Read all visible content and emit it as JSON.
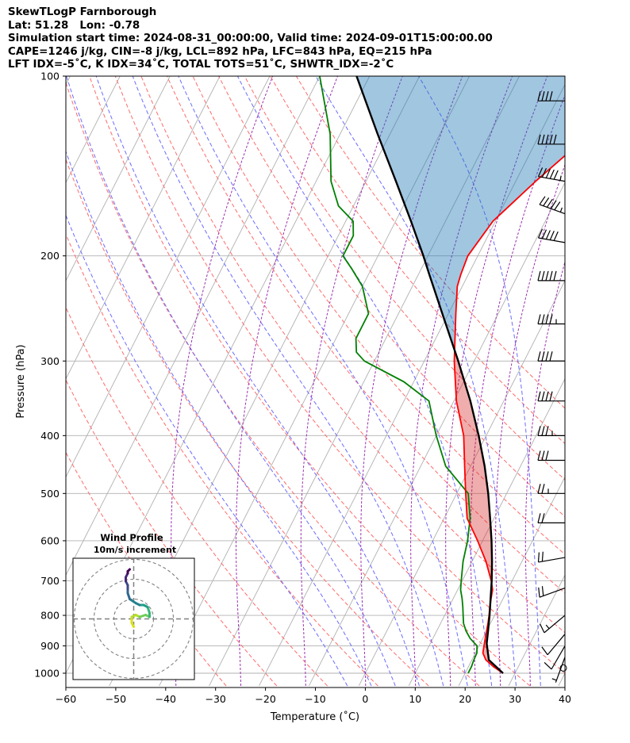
{
  "header": {
    "lines": [
      "SkewTLogP Farnborough",
      "Lat: 51.28   Lon: -0.78",
      "Simulation start time: 2024-08-31_00:00:00, Valid time: 2024-09-01T15:00:00.00",
      "CAPE=1246 j/kg, CIN=-8 j/kg, LCL=892 hPa, LFC=843 hPa, EQ=215 hPa",
      "LFT IDX=-5˚C, K IDX=34˚C, TOTAL TOTS=51˚C, SHWTR_IDX=-2˚C"
    ]
  },
  "chart_data": {
    "type": "skewt-logp",
    "xlabel": "Temperature (˚C)",
    "ylabel": "Pressure (hPa)",
    "xlim": [
      -60,
      40
    ],
    "ylim_hpa": [
      1050,
      100
    ],
    "x_ticks": [
      "−60",
      "−50",
      "−40",
      "−30",
      "−20",
      "−10",
      "0",
      "10",
      "20",
      "30",
      "40"
    ],
    "y_ticks": [
      "100",
      "200",
      "300",
      "400",
      "500",
      "600",
      "700",
      "800",
      "900",
      "1000"
    ],
    "pressure_levels": [
      100,
      200,
      300,
      400,
      500,
      600,
      700,
      800,
      900,
      1000
    ],
    "isotherms_c": [
      -160,
      -150,
      -140,
      -130,
      -120,
      -110,
      -100,
      -90,
      -80,
      -70,
      -60,
      -50,
      -40,
      -30,
      -20,
      -10,
      0,
      10,
      20,
      30,
      40
    ],
    "dry_adiabats_c": [
      -30,
      -20,
      -10,
      0,
      10,
      20,
      30,
      40,
      50,
      60,
      70,
      80,
      90,
      100,
      110
    ],
    "moist_adiabats_c": [
      -5,
      0,
      5,
      10,
      15,
      20,
      25,
      30,
      35
    ],
    "mixing_ratio_c_at_1000": [
      -38,
      -25,
      -12,
      0,
      10,
      17,
      22,
      27,
      33
    ],
    "colors": {
      "temperature": "#ff0000",
      "dewpoint": "#008000",
      "parcel": "#000000",
      "cape_fill": "#1f77b4",
      "cin_fill": "#d62728",
      "isotherm": "#b0b0b0",
      "dry_adiabat": "#ff6b6b",
      "moist_adiabat": "#6b6bff",
      "mixing_ratio": "#9b30b0"
    },
    "temperature": {
      "pressure": [
        1000,
        975,
        950,
        925,
        900,
        875,
        850,
        825,
        800,
        775,
        750,
        725,
        700,
        650,
        600,
        550,
        500,
        450,
        400,
        350,
        300,
        250,
        225,
        215,
        200,
        175,
        150,
        125,
        100
      ],
      "temp_c": [
        27.6,
        25.0,
        22.8,
        21.5,
        21.0,
        20.5,
        20.0,
        19.5,
        18.9,
        18.2,
        17.6,
        17.0,
        15.8,
        12.8,
        9.0,
        4.6,
        1.8,
        -1.2,
        -4.5,
        -9.5,
        -14.0,
        -18.5,
        -21.0,
        -21.5,
        -22.0,
        -20.5,
        -16.0,
        -10.0,
        -9.5
      ]
    },
    "dewpoint": {
      "pressure": [
        1000,
        975,
        950,
        925,
        900,
        875,
        850,
        825,
        800,
        775,
        750,
        725,
        700,
        650,
        600,
        550,
        500,
        450,
        400,
        350,
        325,
        300,
        290,
        275,
        250,
        225,
        210,
        200,
        185,
        175,
        165,
        150,
        125,
        100
      ],
      "dewpt_c": [
        20.6,
        20.6,
        20.4,
        20.3,
        19.6,
        17.5,
        15.9,
        14.6,
        13.7,
        12.8,
        11.8,
        10.6,
        9.8,
        8.2,
        7.0,
        5.2,
        2.3,
        -5.0,
        -10.0,
        -15.0,
        -22.0,
        -32.0,
        -34.5,
        -36.0,
        -36.0,
        -40.0,
        -44.0,
        -47.0,
        -47.0,
        -48.5,
        -53.0,
        -57.0,
        -62.0,
        -70.0
      ]
    },
    "parcel": {
      "pressure": [
        1000,
        950,
        900,
        892,
        850,
        800,
        750,
        700,
        650,
        600,
        550,
        500,
        450,
        400,
        350,
        300,
        250,
        215,
        200,
        175,
        150,
        125,
        100
      ],
      "temp_c": [
        27.6,
        23.4,
        21.6,
        21.3,
        20.3,
        19.0,
        17.5,
        15.9,
        14.0,
        11.8,
        9.2,
        6.3,
        2.8,
        -1.5,
        -6.7,
        -13.2,
        -21.2,
        -27.8,
        -30.9,
        -36.9,
        -44.0,
        -52.5,
        -62.6
      ]
    },
    "wind_barbs": {
      "pressure": [
        980,
        940,
        900,
        860,
        800,
        720,
        640,
        560,
        500,
        440,
        400,
        350,
        300,
        260,
        220,
        190,
        170,
        150,
        130,
        110
      ],
      "speed_kt": [
        0,
        5,
        10,
        10,
        15,
        20,
        20,
        20,
        25,
        30,
        35,
        40,
        40,
        45,
        50,
        50,
        55,
        55,
        50,
        40
      ],
      "dir_deg": [
        0,
        200,
        210,
        220,
        230,
        250,
        260,
        270,
        270,
        270,
        270,
        270,
        270,
        270,
        270,
        280,
        290,
        280,
        270,
        270
      ]
    },
    "hodograph": {
      "title": "Wind Profile",
      "subtitle": "10m/s increment",
      "ring_step_ms": 10,
      "rings": 3,
      "u_ms": [
        0,
        -1,
        -1,
        1,
        3,
        6,
        8,
        8,
        7,
        5,
        3,
        1,
        -2,
        -3,
        -3,
        -3,
        -4,
        -4,
        -3,
        -3,
        -2
      ],
      "v_ms": [
        -4,
        -2,
        1,
        2,
        1,
        2,
        1,
        3,
        6,
        7,
        7,
        8,
        10,
        13,
        15,
        17,
        19,
        21,
        23,
        24,
        25
      ]
    }
  }
}
